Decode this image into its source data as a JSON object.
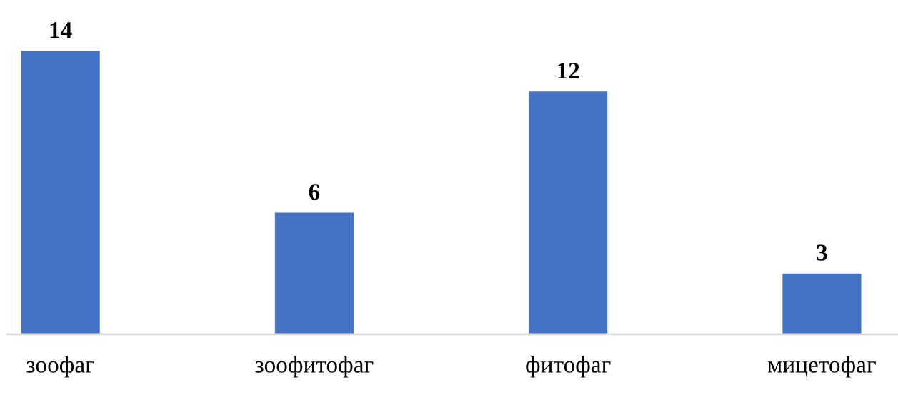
{
  "chart_data": {
    "type": "bar",
    "categories": [
      "зоофаг",
      "зоофитофаг",
      "фитофаг",
      "мицетофаг"
    ],
    "values": [
      14,
      6,
      12,
      3
    ],
    "color": "#4472c4",
    "data_labels": true,
    "grid": false,
    "legend": false
  }
}
